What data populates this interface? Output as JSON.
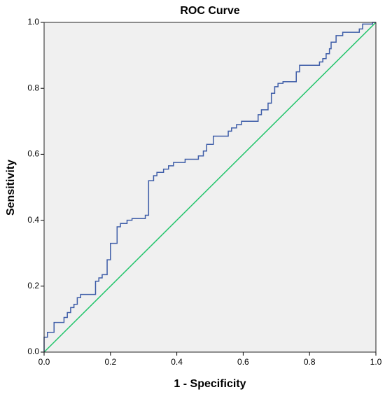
{
  "chart_data": {
    "type": "line",
    "title": "ROC Curve",
    "x_label": "1 - Specificity",
    "y_label": "Sensitivity",
    "xlim": [
      0,
      1
    ],
    "ylim": [
      0,
      1
    ],
    "xticks": [
      {
        "value": 0,
        "label": "0.0"
      },
      0.2,
      0.4,
      0.6,
      0.8,
      {
        "value": 1,
        "label": "1.0"
      }
    ],
    "yticks": [
      {
        "value": 0,
        "label": "0.0"
      },
      0.2,
      0.4,
      0.6,
      0.8,
      {
        "value": 1,
        "label": "1.0"
      }
    ],
    "background": "#f0f0f0",
    "series": [
      {
        "color": "#3e5da8",
        "x": [
          0,
          0,
          0.01,
          0.01,
          0.03,
          0.03,
          0.06,
          0.06,
          0.07,
          0.07,
          0.08,
          0.08,
          0.09,
          0.09,
          0.1,
          0.1,
          0.11,
          0.11,
          0.155,
          0.155,
          0.165,
          0.165,
          0.175,
          0.175,
          0.19,
          0.19,
          0.2,
          0.2,
          0.22,
          0.22,
          0.23,
          0.23,
          0.25,
          0.25,
          0.265,
          0.265,
          0.305,
          0.305,
          0.315,
          0.315,
          0.33,
          0.33,
          0.34,
          0.34,
          0.36,
          0.36,
          0.375,
          0.375,
          0.39,
          0.39,
          0.425,
          0.425,
          0.465,
          0.465,
          0.48,
          0.48,
          0.49,
          0.49,
          0.51,
          0.51,
          0.555,
          0.555,
          0.565,
          0.565,
          0.58,
          0.58,
          0.595,
          0.595,
          0.645,
          0.645,
          0.655,
          0.655,
          0.675,
          0.675,
          0.685,
          0.685,
          0.695,
          0.695,
          0.705,
          0.705,
          0.72,
          0.72,
          0.76,
          0.76,
          0.77,
          0.77,
          0.83,
          0.83,
          0.84,
          0.84,
          0.85,
          0.85,
          0.86,
          0.86,
          0.865,
          0.865,
          0.88,
          0.88,
          0.9,
          0.9,
          0.95,
          0.95,
          0.96,
          0.96,
          0.99,
          0.99,
          1
        ],
        "values": [
          0,
          0.045,
          0.045,
          0.06,
          0.06,
          0.09,
          0.09,
          0.105,
          0.105,
          0.12,
          0.12,
          0.135,
          0.135,
          0.145,
          0.145,
          0.165,
          0.165,
          0.175,
          0.175,
          0.215,
          0.215,
          0.225,
          0.225,
          0.235,
          0.235,
          0.28,
          0.28,
          0.33,
          0.33,
          0.38,
          0.38,
          0.39,
          0.39,
          0.4,
          0.4,
          0.405,
          0.405,
          0.415,
          0.415,
          0.52,
          0.52,
          0.535,
          0.535,
          0.545,
          0.545,
          0.555,
          0.555,
          0.565,
          0.565,
          0.575,
          0.575,
          0.585,
          0.585,
          0.595,
          0.595,
          0.61,
          0.61,
          0.63,
          0.63,
          0.655,
          0.655,
          0.67,
          0.67,
          0.68,
          0.68,
          0.69,
          0.69,
          0.7,
          0.7,
          0.72,
          0.72,
          0.735,
          0.735,
          0.755,
          0.755,
          0.785,
          0.785,
          0.805,
          0.805,
          0.815,
          0.815,
          0.82,
          0.82,
          0.85,
          0.85,
          0.87,
          0.87,
          0.88,
          0.88,
          0.89,
          0.89,
          0.905,
          0.905,
          0.92,
          0.92,
          0.94,
          0.94,
          0.96,
          0.96,
          0.97,
          0.97,
          0.98,
          0.98,
          0.995,
          0.995,
          1,
          1
        ]
      },
      {
        "color": "#21c46a",
        "x": [
          0,
          1
        ],
        "values": [
          0,
          1
        ]
      }
    ]
  }
}
